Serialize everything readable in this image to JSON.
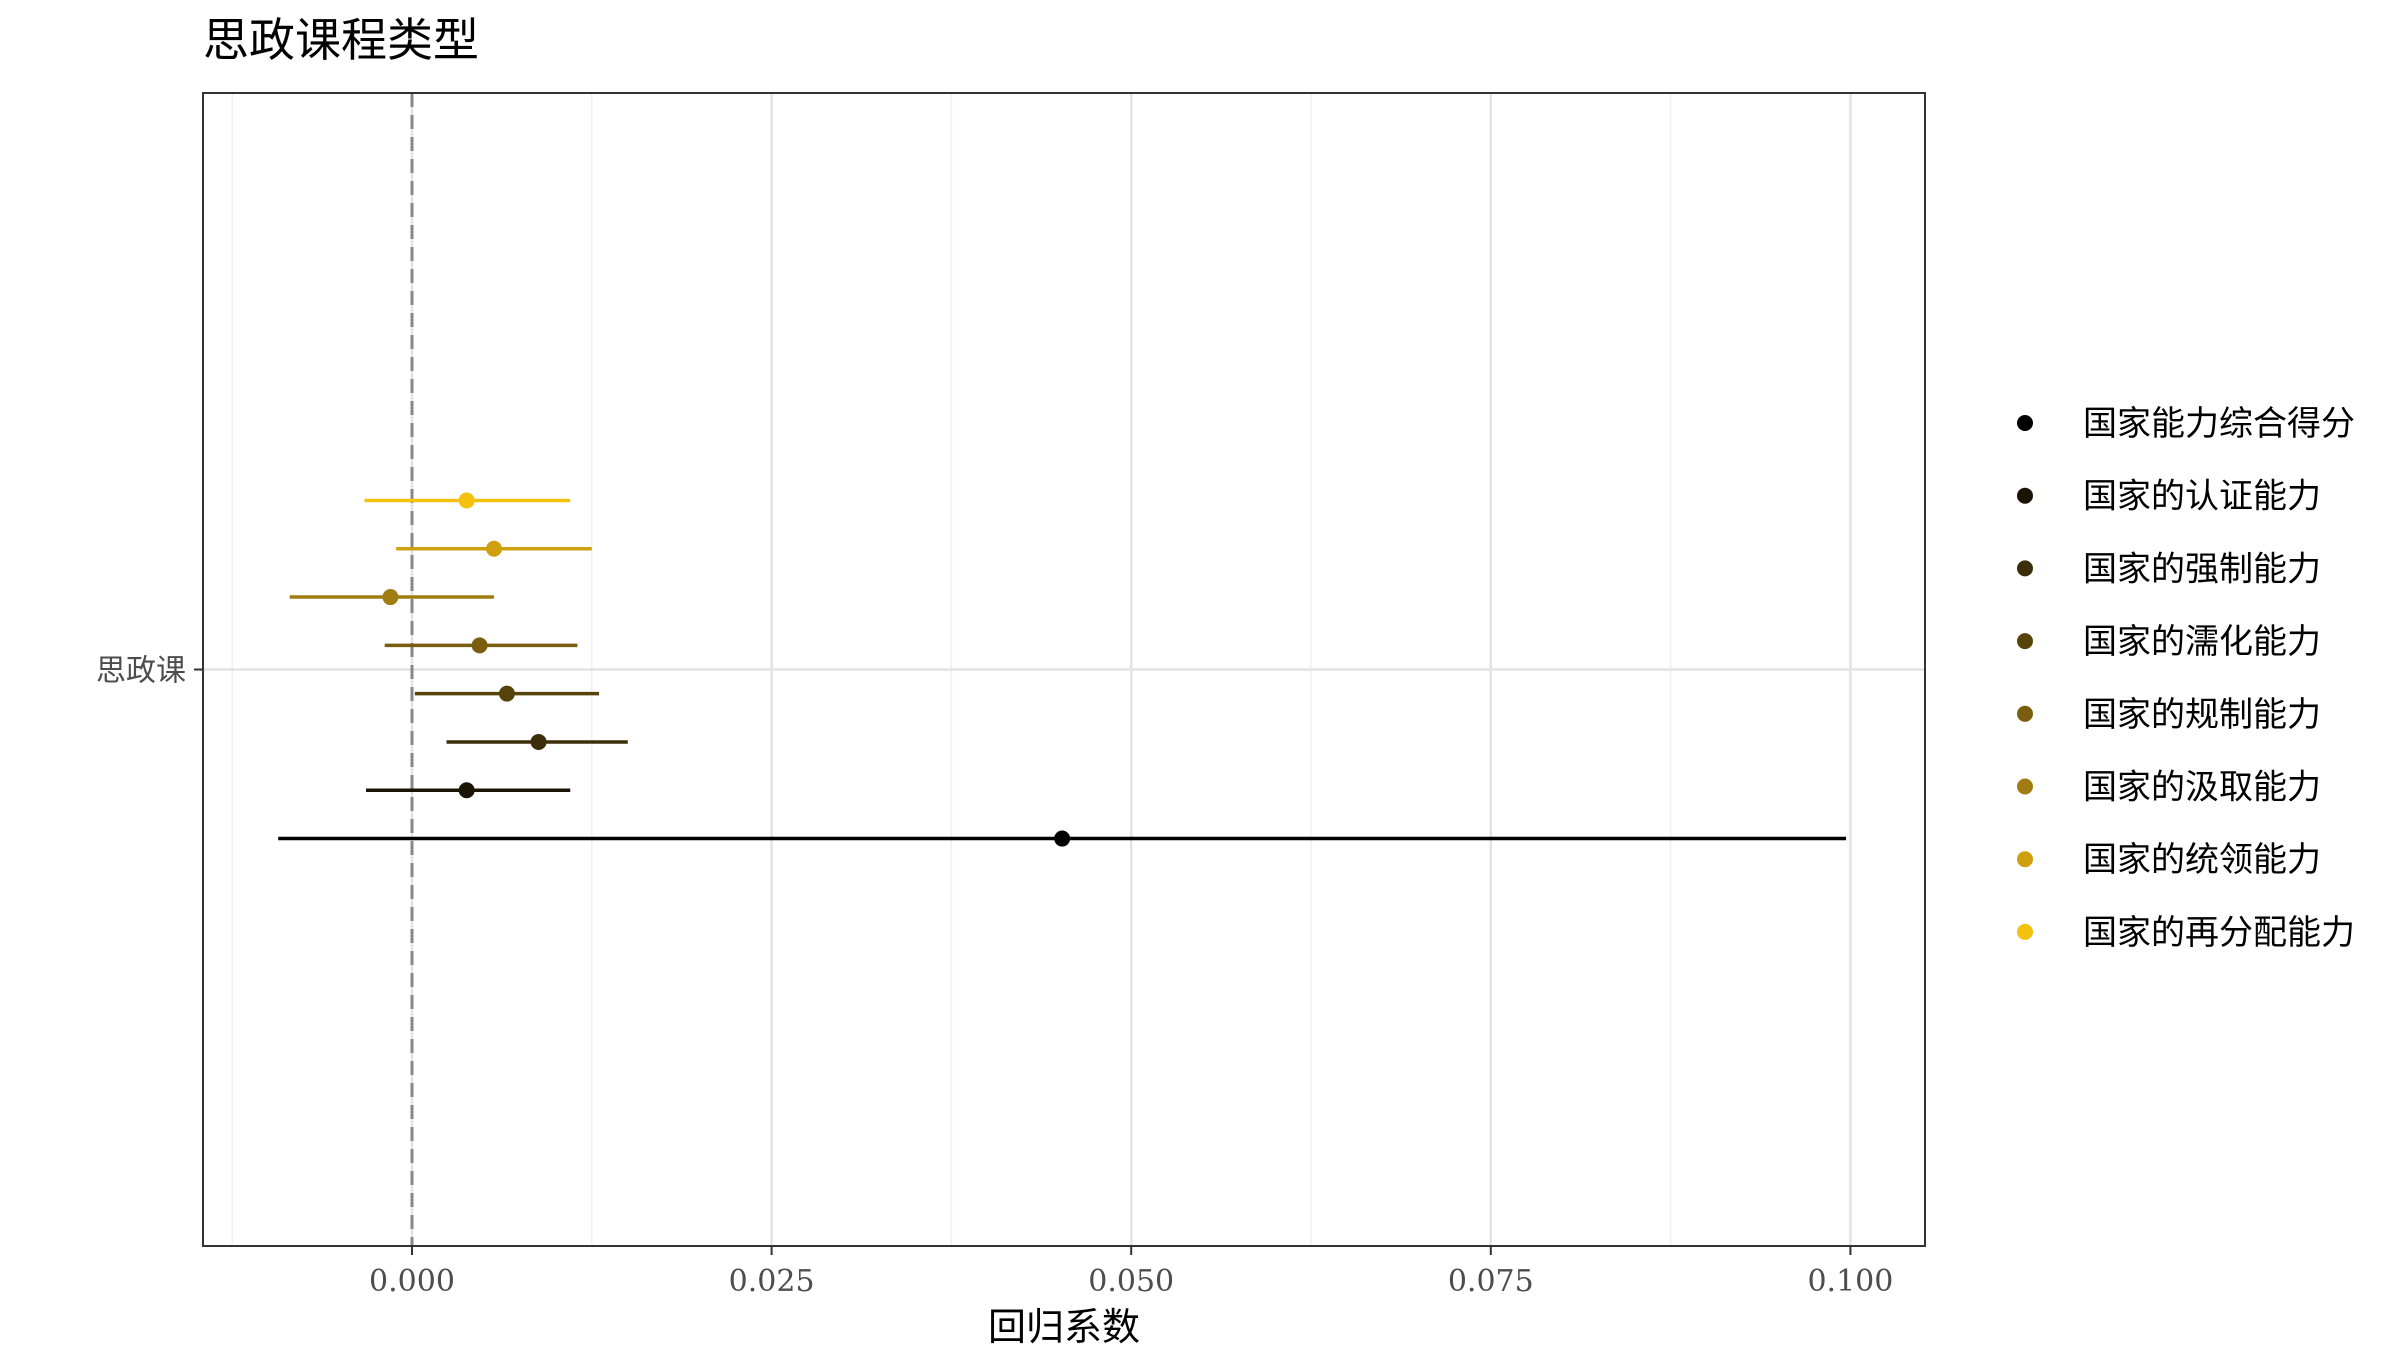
{
  "chart_data": {
    "type": "scatter",
    "subtype": "coefficient-plot-with-error-bars",
    "title": "思政课程类型",
    "xlabel": "回归系数",
    "ylabel": "",
    "xlim": [
      -0.0125,
      0.105
    ],
    "x_ticks": [
      "0.000",
      "0.025",
      "0.050",
      "0.075",
      "0.100"
    ],
    "y_categories": [
      "思政课"
    ],
    "reference_line": {
      "x": 0,
      "style": "dashed",
      "color": "#888888"
    },
    "grid": true,
    "legend_position": "right",
    "series": [
      {
        "name": "国家能力综合得分",
        "color": "#000000",
        "estimate": 0.0452,
        "ci_low": -0.0093,
        "ci_high": 0.0997
      },
      {
        "name": "国家的认证能力",
        "color": "#1a1405",
        "estimate": 0.0038,
        "ci_low": -0.0032,
        "ci_high": 0.011
      },
      {
        "name": "国家的强制能力",
        "color": "#3c2e08",
        "estimate": 0.0088,
        "ci_low": 0.0024,
        "ci_high": 0.015
      },
      {
        "name": "国家的濡化能力",
        "color": "#56430a",
        "estimate": 0.0066,
        "ci_low": 0.0002,
        "ci_high": 0.013
      },
      {
        "name": "国家的规制能力",
        "color": "#7a5e0f",
        "estimate": 0.0047,
        "ci_low": -0.0019,
        "ci_high": 0.0115
      },
      {
        "name": "国家的汲取能力",
        "color": "#a07c12",
        "estimate": -0.0015,
        "ci_low": -0.0085,
        "ci_high": 0.0057
      },
      {
        "name": "国家的统领能力",
        "color": "#d09f0e",
        "estimate": 0.0057,
        "ci_low": -0.0011,
        "ci_high": 0.0125
      },
      {
        "name": "国家的再分配能力",
        "color": "#f4c10f",
        "estimate": 0.0038,
        "ci_low": -0.0033,
        "ci_high": 0.011
      }
    ]
  }
}
